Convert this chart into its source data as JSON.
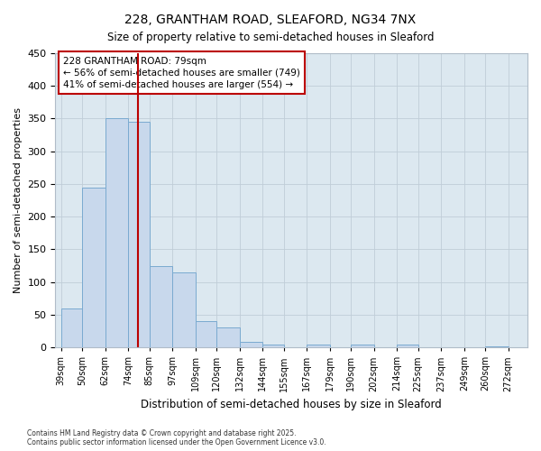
{
  "title_line1": "228, GRANTHAM ROAD, SLEAFORD, NG34 7NX",
  "title_line2": "Size of property relative to semi-detached houses in Sleaford",
  "xlabel": "Distribution of semi-detached houses by size in Sleaford",
  "ylabel": "Number of semi-detached properties",
  "bin_labels": [
    "39sqm",
    "50sqm",
    "62sqm",
    "74sqm",
    "85sqm",
    "97sqm",
    "109sqm",
    "120sqm",
    "132sqm",
    "144sqm",
    "155sqm",
    "167sqm",
    "179sqm",
    "190sqm",
    "202sqm",
    "214sqm",
    "225sqm",
    "237sqm",
    "249sqm",
    "260sqm",
    "272sqm"
  ],
  "bin_edges": [
    39,
    50,
    62,
    74,
    85,
    97,
    109,
    120,
    132,
    144,
    155,
    167,
    179,
    190,
    202,
    214,
    225,
    237,
    249,
    260,
    272
  ],
  "bar_heights": [
    60,
    245,
    350,
    345,
    125,
    115,
    40,
    30,
    8,
    5,
    0,
    5,
    0,
    5,
    0,
    5,
    0,
    0,
    0,
    2
  ],
  "bar_color": "#c8d8ec",
  "bar_edge_color": "#7aaad0",
  "vline_x": 79,
  "vline_color": "#bb0000",
  "annotation_text": "228 GRANTHAM ROAD: 79sqm\n← 56% of semi-detached houses are smaller (749)\n41% of semi-detached houses are larger (554) →",
  "annotation_box_edgecolor": "#bb0000",
  "ylim": [
    0,
    450
  ],
  "yticks": [
    0,
    50,
    100,
    150,
    200,
    250,
    300,
    350,
    400,
    450
  ],
  "background_color": "#ffffff",
  "axes_bg_color": "#dce8f0",
  "grid_color": "#c0cdd8",
  "footer_line1": "Contains HM Land Registry data © Crown copyright and database right 2025.",
  "footer_line2": "Contains public sector information licensed under the Open Government Licence v3.0."
}
